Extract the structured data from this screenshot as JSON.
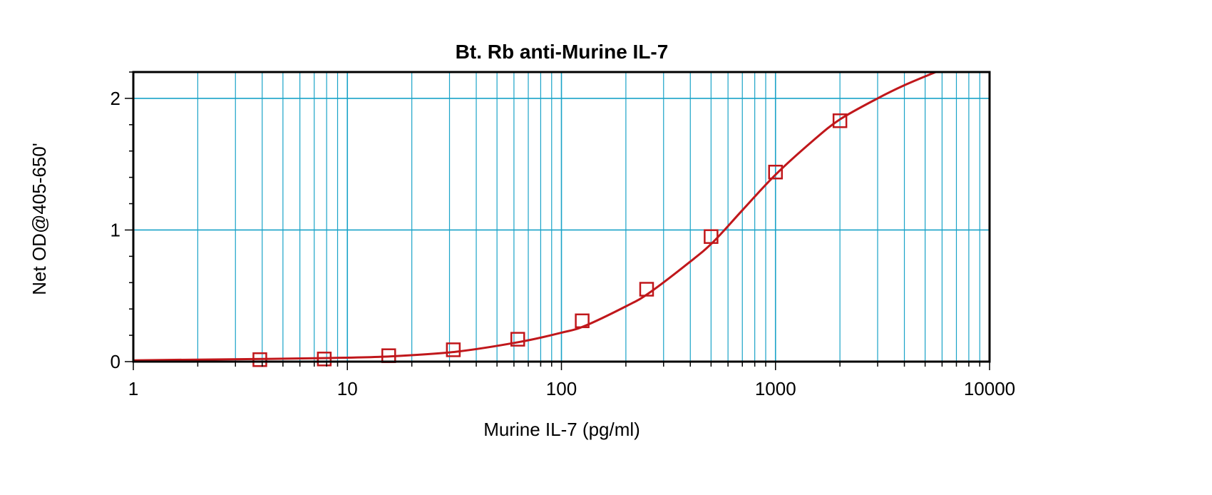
{
  "chart_data": {
    "type": "line",
    "title": "Bt. Rb anti-Murine IL-7",
    "xlabel": "Murine IL-7 (pg/ml)",
    "ylabel": "Net OD@405-650'",
    "x_scale": "log",
    "xlim": [
      1,
      10000
    ],
    "ylim": [
      0,
      2.2
    ],
    "x_ticks": [
      1,
      10,
      100,
      1000,
      10000
    ],
    "x_tick_labels": [
      "1",
      "10",
      "100",
      "1000",
      "10000"
    ],
    "y_ticks": [
      0,
      1,
      2
    ],
    "y_tick_labels": [
      "0",
      "1",
      "2"
    ],
    "grid": true,
    "colors": {
      "series": "#c0171b",
      "grid": "#1aa3c8",
      "frame": "#000000"
    },
    "series": [
      {
        "marker": "open-square",
        "x": [
          3.9,
          7.8,
          15.6,
          31.25,
          62.5,
          125,
          250,
          500,
          1000,
          2000
        ],
        "y": [
          0.015,
          0.02,
          0.045,
          0.09,
          0.17,
          0.31,
          0.55,
          0.95,
          1.44,
          1.83
        ]
      }
    ],
    "fit_curve": {
      "x": [
        1,
        2,
        4,
        8,
        16,
        32,
        64,
        100,
        128,
        200,
        256,
        400,
        512,
        700,
        1000,
        1500,
        2000,
        3000,
        4000,
        5600
      ],
      "y": [
        0.01,
        0.015,
        0.02,
        0.027,
        0.04,
        0.075,
        0.15,
        0.22,
        0.27,
        0.42,
        0.52,
        0.76,
        0.91,
        1.15,
        1.42,
        1.68,
        1.84,
        2.0,
        2.1,
        2.2
      ]
    }
  }
}
